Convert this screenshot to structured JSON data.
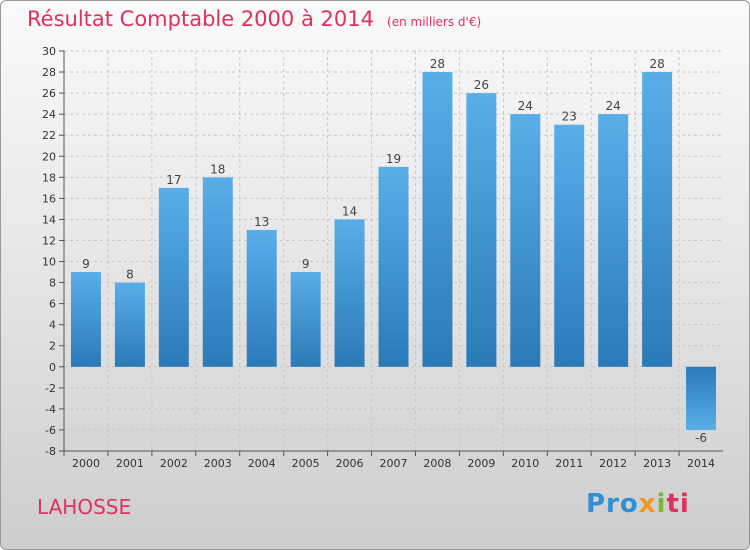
{
  "title": "Résultat Comptable 2000 à 2014",
  "subtitle": "(en milliers d'€)",
  "commune": "LAHOSSE",
  "logo": [
    "Pro",
    "x",
    "i",
    "ti"
  ],
  "colors": {
    "bar_top": "#5aaee8",
    "bar_bottom": "#2a7ab8",
    "title": "#e0305e"
  },
  "chart_data": {
    "type": "bar",
    "title": "Résultat Comptable 2000 à 2014",
    "subtitle": "(en milliers d'€)",
    "categories": [
      "2000",
      "2001",
      "2002",
      "2003",
      "2004",
      "2005",
      "2006",
      "2007",
      "2008",
      "2009",
      "2010",
      "2011",
      "2012",
      "2013",
      "2014"
    ],
    "values": [
      9,
      8,
      17,
      18,
      13,
      9,
      14,
      19,
      28,
      26,
      24,
      23,
      24,
      28,
      -6
    ],
    "ylim": [
      -8,
      30
    ],
    "ytick_step": 2,
    "grid": true,
    "xlabel": "",
    "ylabel": ""
  }
}
